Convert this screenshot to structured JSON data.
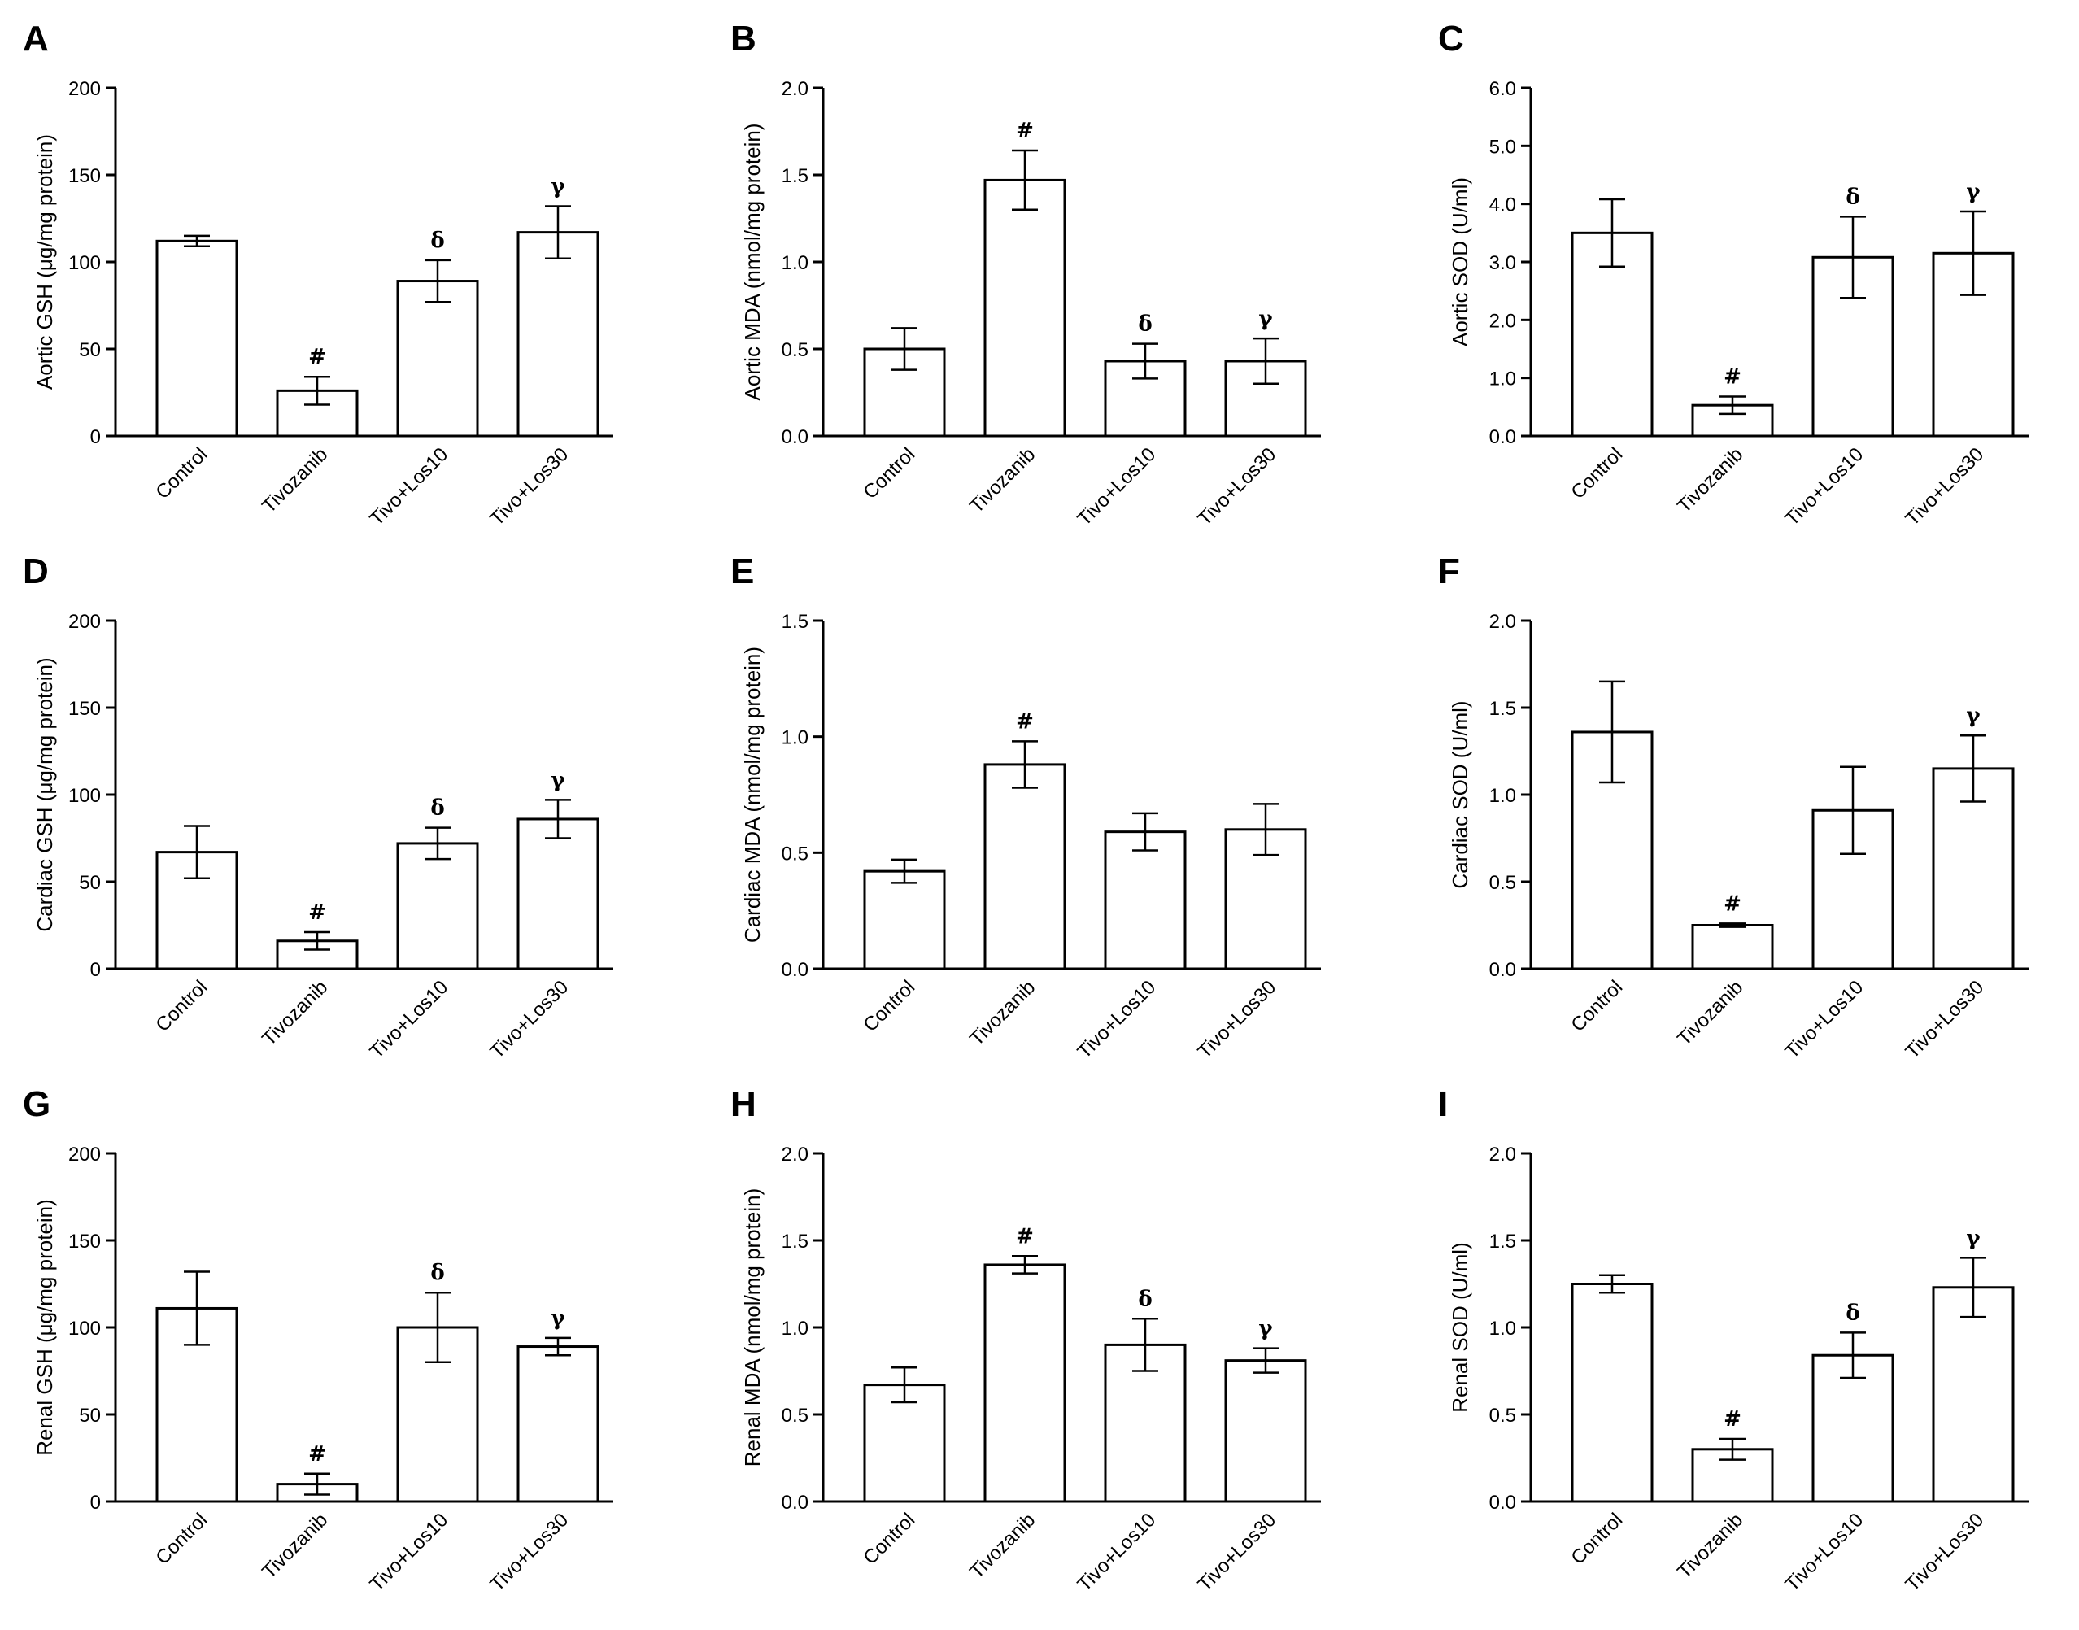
{
  "figure": {
    "categories": [
      "Control",
      "Tivozanib",
      "Tivo+Los10",
      "Tivo+Los30"
    ]
  },
  "chart_data": [
    {
      "panel": "A",
      "type": "bar",
      "ylabel": "Aortic GSH (μg/mg protein)",
      "ylim": [
        0,
        200
      ],
      "ticks": [
        0,
        50,
        100,
        150,
        200
      ],
      "decimals": 0,
      "categories": [
        "Control",
        "Tivozanib",
        "Tivo+Los10",
        "Tivo+Los30"
      ],
      "values": [
        112,
        26,
        89,
        117
      ],
      "errors": [
        3,
        8,
        12,
        15
      ],
      "annotations": [
        "",
        "#",
        "δ",
        "γ"
      ]
    },
    {
      "panel": "B",
      "type": "bar",
      "ylabel": "Aortic MDA (nmol/mg protein)",
      "ylim": [
        0,
        2
      ],
      "ticks": [
        0,
        0.5,
        1,
        1.5,
        2
      ],
      "decimals": 1,
      "categories": [
        "Control",
        "Tivozanib",
        "Tivo+Los10",
        "Tivo+Los30"
      ],
      "values": [
        0.5,
        1.47,
        0.43,
        0.43
      ],
      "errors": [
        0.12,
        0.17,
        0.1,
        0.13
      ],
      "annotations": [
        "",
        "#",
        "δ",
        "γ"
      ]
    },
    {
      "panel": "C",
      "type": "bar",
      "ylabel": "Aortic SOD (U/ml)",
      "ylim": [
        0,
        6
      ],
      "ticks": [
        0,
        1,
        2,
        3,
        4,
        5,
        6
      ],
      "decimals": 1,
      "categories": [
        "Control",
        "Tivozanib",
        "Tivo+Los10",
        "Tivo+Los30"
      ],
      "values": [
        3.5,
        0.53,
        3.08,
        3.15
      ],
      "errors": [
        0.58,
        0.15,
        0.7,
        0.72
      ],
      "annotations": [
        "",
        "#",
        "δ",
        "γ"
      ]
    },
    {
      "panel": "D",
      "type": "bar",
      "ylabel": "Cardiac GSH (μg/mg protein)",
      "ylim": [
        0,
        200
      ],
      "ticks": [
        0,
        50,
        100,
        150,
        200
      ],
      "decimals": 0,
      "categories": [
        "Control",
        "Tivozanib",
        "Tivo+Los10",
        "Tivo+Los30"
      ],
      "values": [
        67,
        16,
        72,
        86
      ],
      "errors": [
        15,
        5,
        9,
        11
      ],
      "annotations": [
        "",
        "#",
        "δ",
        "γ"
      ]
    },
    {
      "panel": "E",
      "type": "bar",
      "ylabel": "Cardiac MDA (nmol/mg protein)",
      "ylim": [
        0,
        1.5
      ],
      "ticks": [
        0,
        0.5,
        1,
        1.5
      ],
      "decimals": 1,
      "categories": [
        "Control",
        "Tivozanib",
        "Tivo+Los10",
        "Tivo+Los30"
      ],
      "values": [
        0.42,
        0.88,
        0.59,
        0.6
      ],
      "errors": [
        0.05,
        0.1,
        0.08,
        0.11
      ],
      "annotations": [
        "",
        "#",
        "",
        ""
      ]
    },
    {
      "panel": "F",
      "type": "bar",
      "ylabel": "Cardiac SOD (U/ml)",
      "ylim": [
        0,
        2
      ],
      "ticks": [
        0,
        0.5,
        1,
        1.5,
        2
      ],
      "decimals": 1,
      "categories": [
        "Control",
        "Tivozanib",
        "Tivo+Los10",
        "Tivo+Los30"
      ],
      "values": [
        1.36,
        0.25,
        0.91,
        1.15
      ],
      "errors": [
        0.29,
        0.01,
        0.25,
        0.19
      ],
      "annotations": [
        "",
        "#",
        "",
        "γ"
      ]
    },
    {
      "panel": "G",
      "type": "bar",
      "ylabel": "Renal GSH (μg/mg protein)",
      "ylim": [
        0,
        200
      ],
      "ticks": [
        0,
        50,
        100,
        150,
        200
      ],
      "decimals": 0,
      "categories": [
        "Control",
        "Tivozanib",
        "Tivo+Los10",
        "Tivo+Los30"
      ],
      "values": [
        111,
        10,
        100,
        89
      ],
      "errors": [
        21,
        6,
        20,
        5
      ],
      "annotations": [
        "",
        "#",
        "δ",
        "γ"
      ]
    },
    {
      "panel": "H",
      "type": "bar",
      "ylabel": "Renal MDA (nmol/mg protein)",
      "ylim": [
        0,
        2
      ],
      "ticks": [
        0,
        0.5,
        1,
        1.5,
        2
      ],
      "decimals": 1,
      "categories": [
        "Control",
        "Tivozanib",
        "Tivo+Los10",
        "Tivo+Los30"
      ],
      "values": [
        0.67,
        1.36,
        0.9,
        0.81
      ],
      "errors": [
        0.1,
        0.05,
        0.15,
        0.07
      ],
      "annotations": [
        "",
        "#",
        "δ",
        "γ"
      ]
    },
    {
      "panel": "I",
      "type": "bar",
      "ylabel": "Renal SOD (U/ml)",
      "ylim": [
        0,
        2
      ],
      "ticks": [
        0,
        0.5,
        1,
        1.5,
        2
      ],
      "decimals": 1,
      "categories": [
        "Control",
        "Tivozanib",
        "Tivo+Los10",
        "Tivo+Los30"
      ],
      "values": [
        1.25,
        0.3,
        0.84,
        1.23
      ],
      "errors": [
        0.05,
        0.06,
        0.13,
        0.17
      ],
      "annotations": [
        "",
        "#",
        "δ",
        "γ"
      ]
    }
  ]
}
